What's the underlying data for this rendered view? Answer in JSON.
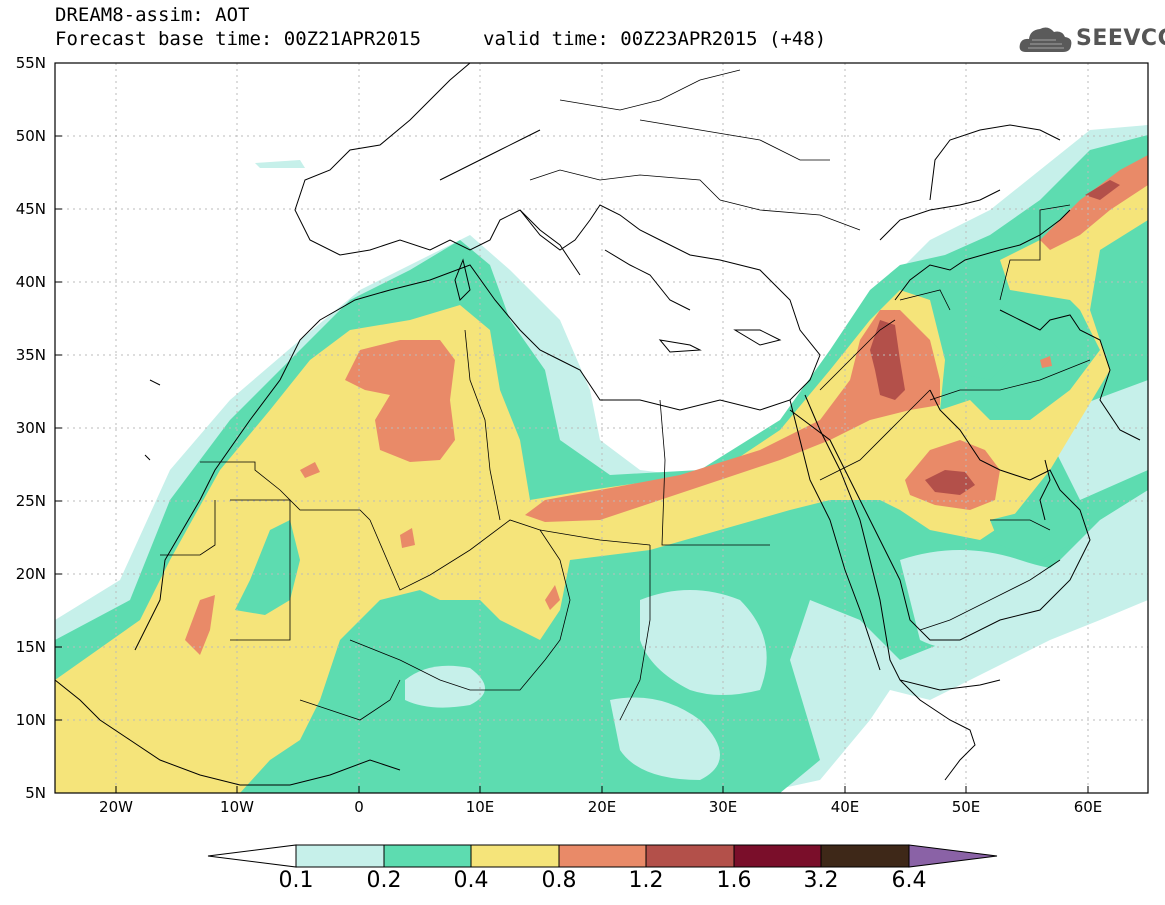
{
  "header": {
    "title_line1": "DREAM8-assim: AOT",
    "forecast_base": "Forecast base time: 00Z21APR2015",
    "valid_time": "valid time: 00Z23APR2015 (+48)",
    "logo_text": "SEEVCCC",
    "logo_icon": "cloud-icon"
  },
  "map": {
    "lat_labels": [
      "55N",
      "50N",
      "45N",
      "40N",
      "35N",
      "30N",
      "25N",
      "20N",
      "15N",
      "10N",
      "5N"
    ],
    "lon_labels": [
      "20W",
      "10W",
      "0",
      "10E",
      "20E",
      "30E",
      "40E",
      "50E",
      "60E"
    ],
    "lat_range": [
      5,
      55
    ],
    "lon_range": [
      -25,
      65
    ],
    "grid": true,
    "field": "AOT"
  },
  "colorbar": {
    "labels": [
      "0.1",
      "0.2",
      "0.4",
      "0.8",
      "1.2",
      "1.6",
      "3.2",
      "6.4"
    ],
    "colors": [
      "#ffffff",
      "#c6f0ea",
      "#5ddcb0",
      "#f5e47a",
      "#e98a68",
      "#b3504a",
      "#7a0e2a",
      "#3e2818",
      "#8a62a6"
    ]
  }
}
